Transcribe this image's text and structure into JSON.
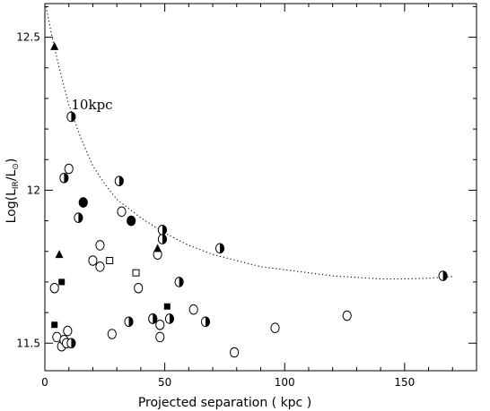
{
  "chart_data": {
    "type": "scatter",
    "xlabel": "Projected separation ( kpc )",
    "ylabel_parts": [
      "Log",
      "(L",
      "IR",
      "/L",
      "⊙",
      ")"
    ],
    "xlim": [
      0,
      180
    ],
    "ylim": [
      11.41,
      12.61
    ],
    "xticks": [
      0,
      50,
      100,
      150
    ],
    "yticks": [
      11.5,
      12,
      12.5
    ],
    "annotations": [
      {
        "text": "10kpc",
        "x": 11,
        "y": 12.28
      }
    ],
    "curve": {
      "style": "dotted",
      "points": [
        [
          0.5,
          12.6
        ],
        [
          3,
          12.5
        ],
        [
          6,
          12.4
        ],
        [
          10,
          12.28
        ],
        [
          15,
          12.17
        ],
        [
          20,
          12.08
        ],
        [
          25,
          12.02
        ],
        [
          30,
          11.97
        ],
        [
          40,
          11.91
        ],
        [
          50,
          11.86
        ],
        [
          60,
          11.82
        ],
        [
          70,
          11.79
        ],
        [
          80,
          11.77
        ],
        [
          90,
          11.75
        ],
        [
          100,
          11.74
        ],
        [
          110,
          11.73
        ],
        [
          120,
          11.72
        ],
        [
          130,
          11.715
        ],
        [
          140,
          11.71
        ],
        [
          150,
          11.71
        ],
        [
          160,
          11.712
        ],
        [
          170,
          11.718
        ]
      ]
    },
    "series": [
      {
        "marker": "open-circle",
        "points": [
          [
            4,
            11.68
          ],
          [
            5,
            11.52
          ],
          [
            7,
            11.49
          ],
          [
            8,
            11.51
          ],
          [
            9,
            11.5
          ],
          [
            9.5,
            11.54
          ],
          [
            10,
            12.07
          ],
          [
            20,
            11.77
          ],
          [
            23,
            11.82
          ],
          [
            23,
            11.75
          ],
          [
            28,
            11.53
          ],
          [
            32,
            11.93
          ],
          [
            39,
            11.68
          ],
          [
            45,
            11.58
          ],
          [
            47,
            11.79
          ],
          [
            48,
            11.56
          ],
          [
            48,
            11.52
          ],
          [
            62,
            11.61
          ],
          [
            79,
            11.47
          ],
          [
            96,
            11.55
          ],
          [
            126,
            11.59
          ]
        ]
      },
      {
        "marker": "half-filled-circle",
        "points": [
          [
            8,
            12.04
          ],
          [
            11,
            12.24
          ],
          [
            11,
            11.5
          ],
          [
            14,
            11.91
          ],
          [
            31,
            12.03
          ],
          [
            35,
            11.57
          ],
          [
            45,
            11.58
          ],
          [
            49,
            11.84
          ],
          [
            49,
            11.87
          ],
          [
            52,
            11.58
          ],
          [
            56,
            11.7
          ],
          [
            67,
            11.57
          ],
          [
            73,
            11.81
          ],
          [
            166,
            11.72
          ]
        ]
      },
      {
        "marker": "filled-circle",
        "points": [
          [
            16,
            11.96
          ],
          [
            36,
            11.9
          ]
        ]
      },
      {
        "marker": "filled-triangle",
        "points": [
          [
            4,
            12.47
          ],
          [
            6,
            11.79
          ],
          [
            47,
            11.81
          ]
        ]
      },
      {
        "marker": "filled-square",
        "points": [
          [
            4,
            11.56
          ],
          [
            7,
            11.7
          ],
          [
            51,
            11.62
          ]
        ]
      },
      {
        "marker": "open-square",
        "points": [
          [
            27,
            11.77
          ],
          [
            38,
            11.73
          ]
        ]
      }
    ]
  }
}
